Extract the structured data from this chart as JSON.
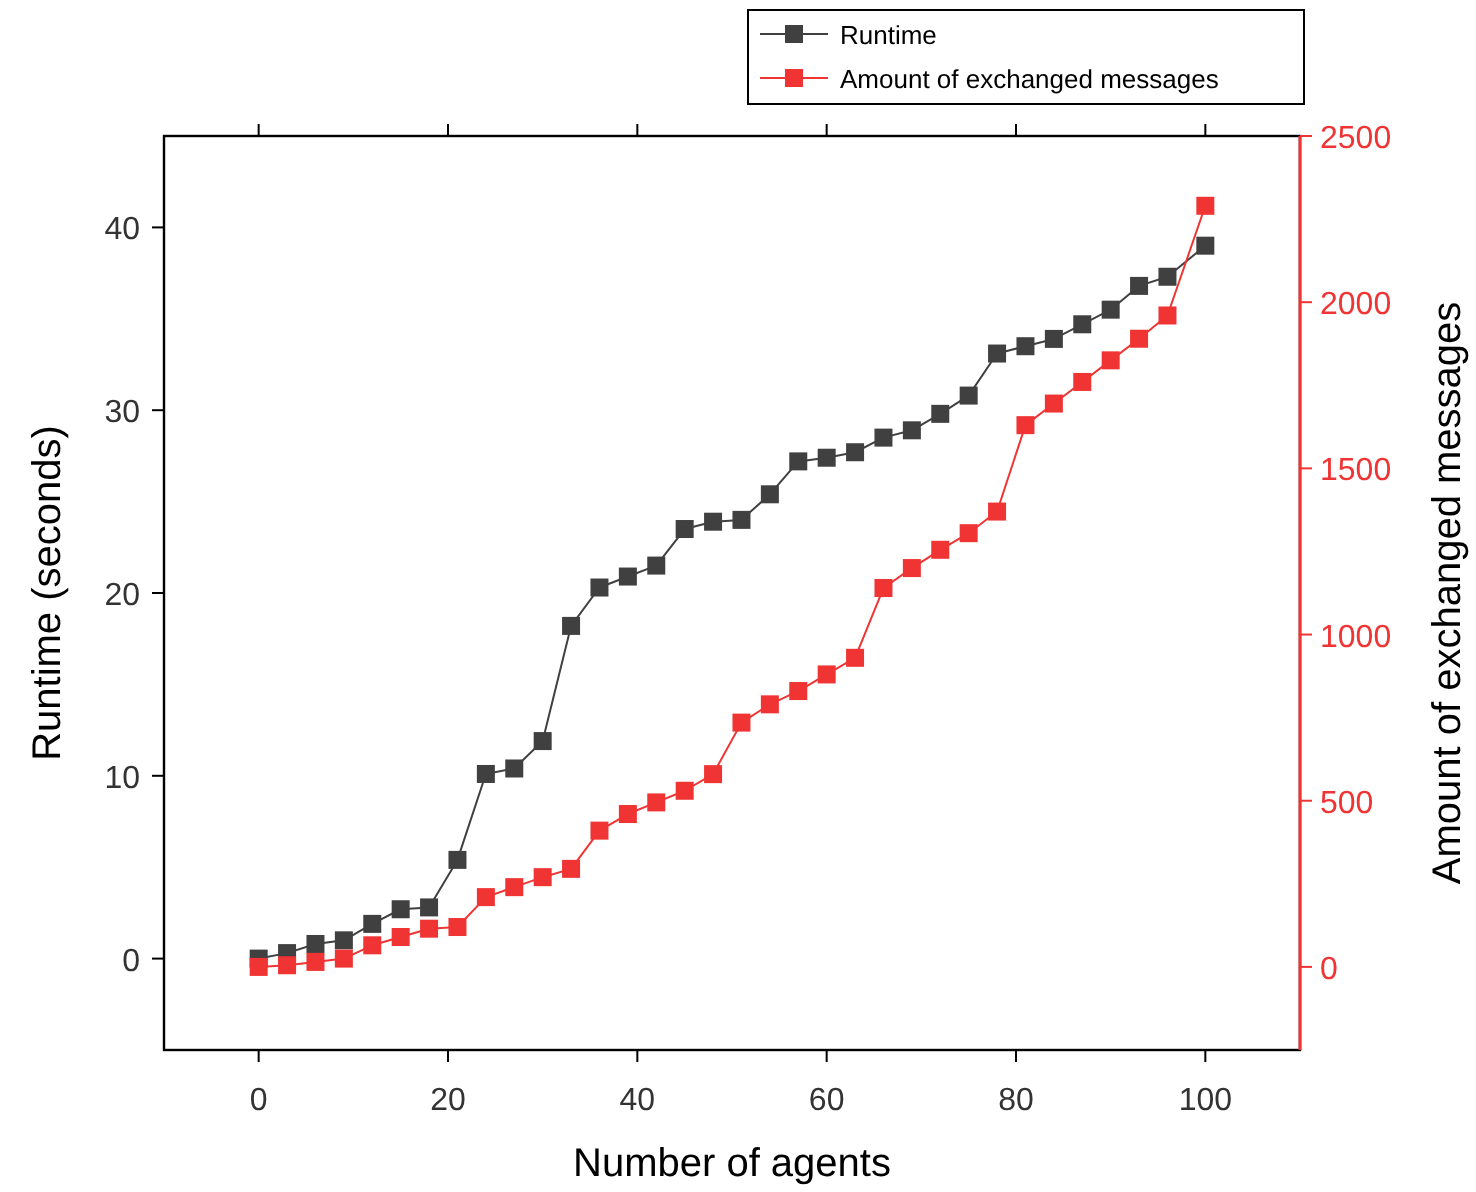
{
  "chart_data": {
    "type": "line",
    "xlabel": "Number of agents",
    "ylabel": "Runtime (seconds)",
    "y2label": "Amount of exchanged messages",
    "x": [
      0,
      3,
      6,
      9,
      12,
      15,
      18,
      21,
      24,
      27,
      30,
      33,
      36,
      39,
      42,
      45,
      48,
      51,
      54,
      57,
      60,
      63,
      66,
      69,
      72,
      75,
      78,
      81,
      84,
      87,
      90,
      93,
      96,
      100
    ],
    "xlim": [
      -10,
      110
    ],
    "xticks": [
      0,
      20,
      40,
      60,
      80,
      100
    ],
    "ylim": [
      -5,
      45
    ],
    "yticks": [
      0,
      10,
      20,
      30,
      40
    ],
    "y2lim": [
      -250,
      2500
    ],
    "y2ticks": [
      0,
      500,
      1000,
      1500,
      2000,
      2500
    ],
    "marker": "square",
    "line_style": "solid",
    "grid": false,
    "legend": "top right",
    "series": [
      {
        "name": "Runtime",
        "color": "#404040",
        "values": [
          0,
          0.3,
          0.8,
          1.0,
          1.9,
          2.7,
          2.8,
          5.4,
          10.1,
          10.4,
          11.9,
          18.2,
          20.3,
          20.9,
          21.5,
          23.5,
          23.9,
          24.0,
          25.4,
          27.2,
          27.4,
          27.7,
          28.5,
          28.9,
          29.8,
          30.8,
          33.1,
          33.5,
          33.9,
          34.7,
          35.5,
          36.8,
          37.3,
          39.0
        ]
      },
      {
        "name": "Amount of exchanged messages",
        "color": "#f03434",
        "axis": "y2",
        "values": [
          0,
          5,
          15,
          25,
          65,
          90,
          115,
          120,
          210,
          240,
          270,
          295,
          410,
          460,
          495,
          530,
          580,
          735,
          790,
          830,
          880,
          930,
          1140,
          1200,
          1255,
          1305,
          1370,
          1630,
          1695,
          1760,
          1825,
          1890,
          1960,
          2290
        ]
      }
    ]
  }
}
